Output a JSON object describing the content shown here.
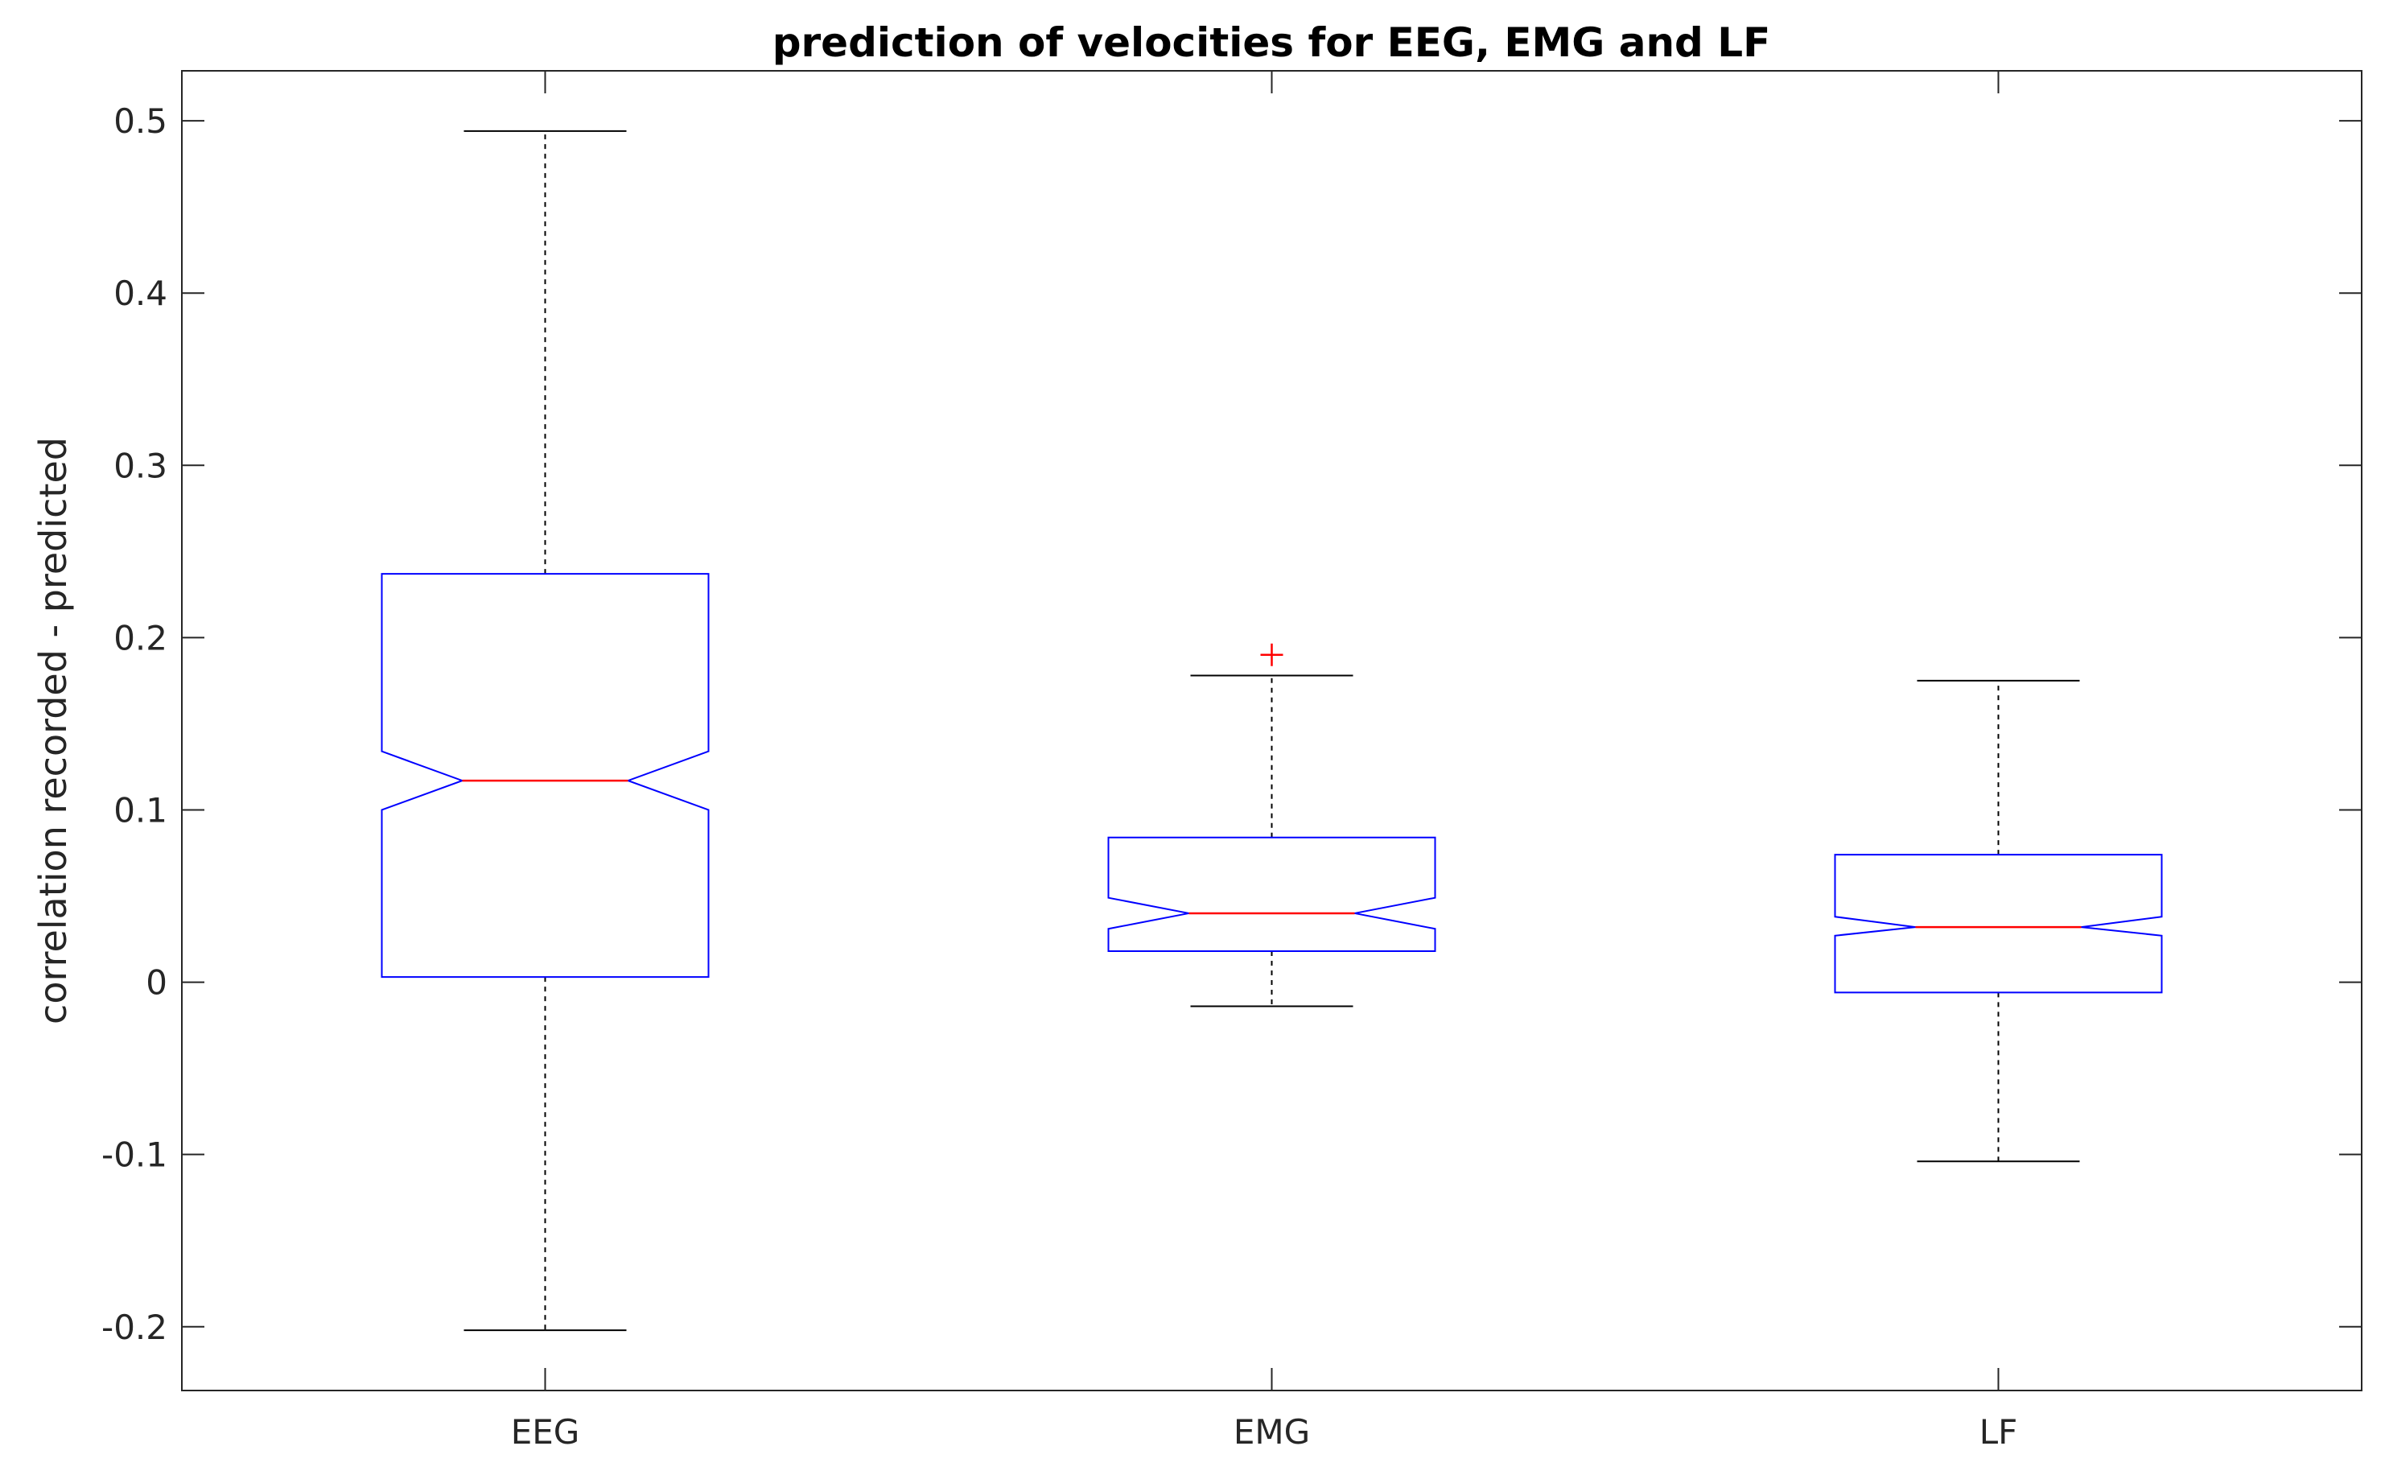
{
  "chart_data": {
    "type": "boxplot",
    "title": "prediction of velocities for EEG, EMG and LF",
    "xlabel": "",
    "ylabel": "correlation recorded - predicted",
    "categories": [
      "EEG",
      "EMG",
      "LF"
    ],
    "ylim": [
      -0.237,
      0.529
    ],
    "yticks": [
      -0.2,
      -0.1,
      0,
      0.1,
      0.2,
      0.3,
      0.4,
      0.5
    ],
    "ytick_labels": [
      "-0.2",
      "-0.1",
      "0",
      "0.1",
      "0.2",
      "0.3",
      "0.4",
      "0.5"
    ],
    "notched": true,
    "grid": false,
    "colors": {
      "box": "#0000ff",
      "median": "#ff0000",
      "whisker": "#000000",
      "outlier": "#ff0000"
    },
    "boxes": [
      {
        "name": "EEG",
        "whisker_low": -0.202,
        "q1": 0.003,
        "median": 0.117,
        "q3": 0.237,
        "whisker_high": 0.494,
        "notch_low": 0.1,
        "notch_high": 0.134,
        "outliers": []
      },
      {
        "name": "EMG",
        "whisker_low": -0.014,
        "q1": 0.018,
        "median": 0.04,
        "q3": 0.084,
        "whisker_high": 0.178,
        "notch_low": 0.031,
        "notch_high": 0.049,
        "outliers": [
          0.19
        ]
      },
      {
        "name": "LF",
        "whisker_low": -0.104,
        "q1": -0.006,
        "median": 0.032,
        "q3": 0.074,
        "whisker_high": 0.175,
        "notch_low": 0.027,
        "notch_high": 0.038,
        "outliers": []
      }
    ]
  }
}
